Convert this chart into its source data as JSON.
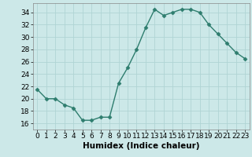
{
  "x": [
    0,
    1,
    2,
    3,
    4,
    5,
    6,
    7,
    8,
    9,
    10,
    11,
    12,
    13,
    14,
    15,
    16,
    17,
    18,
    19,
    20,
    21,
    22,
    23
  ],
  "y": [
    21.5,
    20.0,
    20.0,
    19.0,
    18.5,
    16.5,
    16.5,
    17.0,
    17.0,
    22.5,
    25.0,
    28.0,
    31.5,
    34.5,
    33.5,
    34.0,
    34.5,
    34.5,
    34.0,
    32.0,
    30.5,
    29.0,
    27.5,
    26.5
  ],
  "line_color": "#2e7d6e",
  "marker": "D",
  "marker_size": 2.5,
  "bg_color": "#cce8e8",
  "grid_color": "#b0d4d4",
  "xlabel": "Humidex (Indice chaleur)",
  "xlim": [
    -0.5,
    23.5
  ],
  "ylim": [
    15,
    35.5
  ],
  "yticks": [
    16,
    18,
    20,
    22,
    24,
    26,
    28,
    30,
    32,
    34
  ],
  "xticks": [
    0,
    1,
    2,
    3,
    4,
    5,
    6,
    7,
    8,
    9,
    10,
    11,
    12,
    13,
    14,
    15,
    16,
    17,
    18,
    19,
    20,
    21,
    22,
    23
  ],
  "xlabel_fontsize": 7.5,
  "tick_fontsize": 6.5,
  "line_width": 1.0
}
